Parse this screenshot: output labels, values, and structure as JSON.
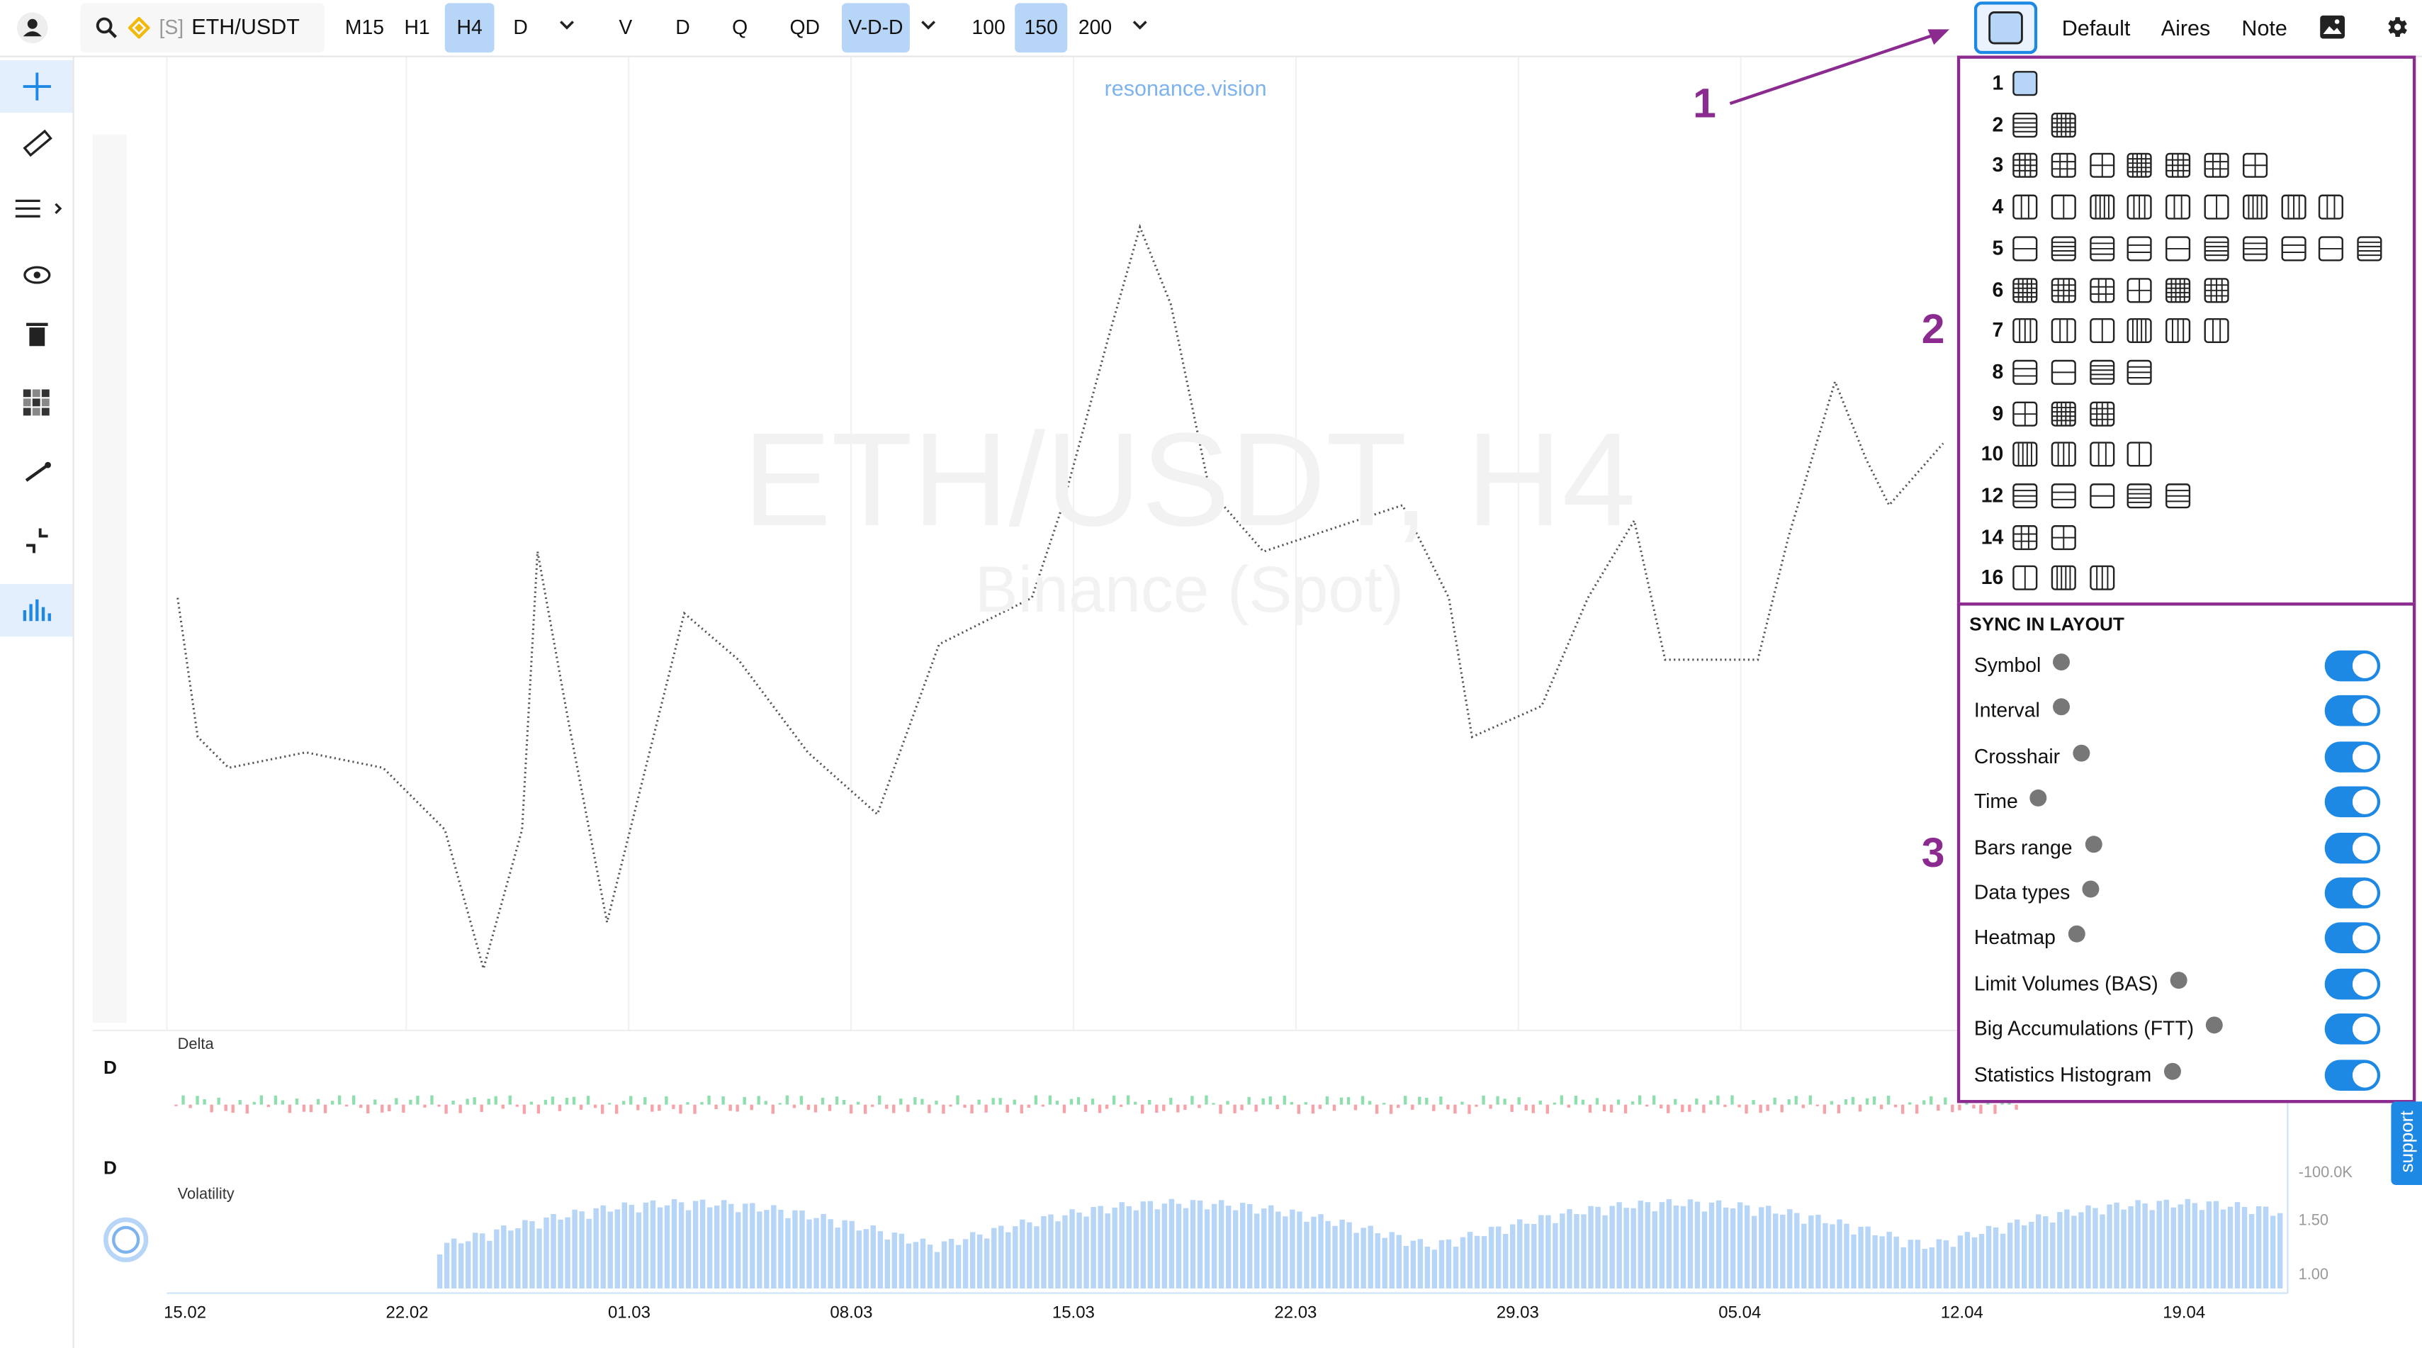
{
  "toolbar": {
    "symbol_prefix": "[S]",
    "symbol": "ETH/USDT",
    "intervals": [
      "M15",
      "H1",
      "H4",
      "D"
    ],
    "active_interval": 2,
    "data_types": [
      "V",
      "D",
      "Q",
      "QD",
      "V-D-D"
    ],
    "active_data_type": 4,
    "bars": [
      "100",
      "150",
      "200"
    ],
    "active_bars": 1,
    "presets": [
      "Default",
      "Aires",
      "Note"
    ]
  },
  "chart": {
    "watermark": "resonance.vision",
    "title": "ETH/USDT, H4",
    "subtitle": "Binance (Spot)",
    "panels": [
      {
        "marker": "D",
        "name": "Delta",
        "axis_label": "-100.0K"
      },
      {
        "marker": "D",
        "name": "Volatility",
        "axis_labels": [
          "1.50",
          "1.00"
        ]
      }
    ],
    "dates": [
      "15.02",
      "22.02",
      "01.03",
      "08.03",
      "15.03",
      "22.03",
      "29.03",
      "05.04",
      "12.04",
      "19.04"
    ]
  },
  "layout_panel": {
    "rows": [
      {
        "label": "1",
        "options": 1
      },
      {
        "label": "2",
        "options": 2
      },
      {
        "label": "3",
        "options": 7
      },
      {
        "label": "4",
        "options": 9
      },
      {
        "label": "5",
        "options": 10
      },
      {
        "label": "6",
        "options": 6
      },
      {
        "label": "7",
        "options": 6
      },
      {
        "label": "8",
        "options": 4
      },
      {
        "label": "9",
        "options": 3
      },
      {
        "label": "10",
        "options": 4
      },
      {
        "label": "12",
        "options": 5
      },
      {
        "label": "14",
        "options": 2
      },
      {
        "label": "16",
        "options": 3
      }
    ]
  },
  "sync": {
    "heading": "SYNC IN LAYOUT",
    "items": [
      {
        "label": "Symbol",
        "on": true
      },
      {
        "label": "Interval",
        "on": true
      },
      {
        "label": "Crosshair",
        "on": true
      },
      {
        "label": "Time",
        "on": true
      },
      {
        "label": "Bars range",
        "on": true
      },
      {
        "label": "Data types",
        "on": true
      },
      {
        "label": "Heatmap",
        "on": true
      },
      {
        "label": "Limit Volumes (BAS)",
        "on": true
      },
      {
        "label": "Big Accumulations (FTT)",
        "on": true
      },
      {
        "label": "Statistics Histogram",
        "on": true
      }
    ]
  },
  "annotations": [
    "1",
    "2",
    "3"
  ],
  "support": "support"
}
